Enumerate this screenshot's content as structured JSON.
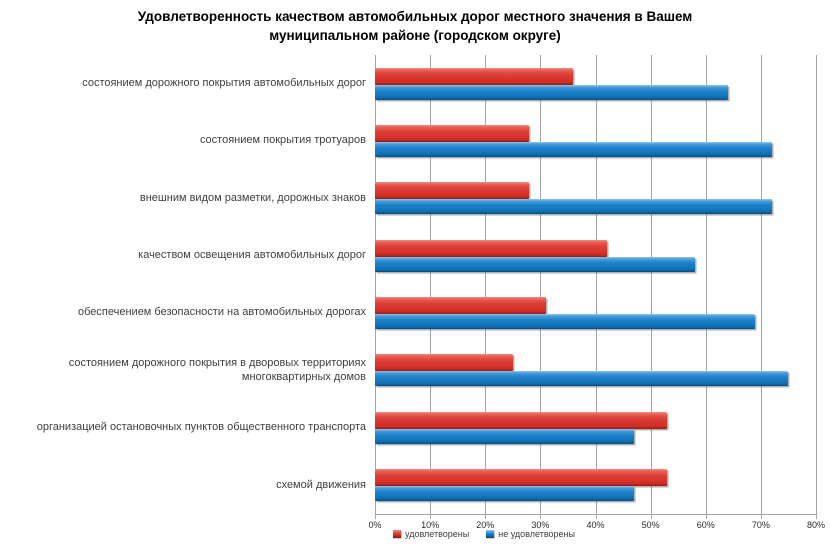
{
  "title": "Удовлетворенность качеством автомобильных дорог местного значения в Вашем муниципальном районе (городском округе)",
  "chart_data": {
    "type": "bar",
    "orientation": "horizontal",
    "title": "Удовлетворенность качеством автомобильных дорог местного значения в Вашем муниципальном районе (городском округе)",
    "categories": [
      "состоянием дорожного покрытия автомобильных дорог",
      "состоянием покрытия тротуаров",
      "внешним видом разметки, дорожных знаков",
      "качеством освещения автомобильных дорог",
      "обеспечением безопасности на автомобильных дорогах",
      "состоянием дорожного покрытия в дворовых территориях многоквартирных домов",
      "организацией остановочных пунктов общественного транспорта",
      "схемой движения"
    ],
    "series": [
      {
        "name": "удовлетворены",
        "color": "#d5322a",
        "values": [
          36,
          28,
          28,
          42,
          31,
          25,
          53,
          53
        ]
      },
      {
        "name": "не удовлетворены",
        "color": "#1376bb",
        "values": [
          64,
          72,
          72,
          58,
          69,
          75,
          47,
          47
        ]
      }
    ],
    "xlim": [
      0,
      80
    ],
    "x_ticks": [
      "0%",
      "10%",
      "20%",
      "30%",
      "40%",
      "50%",
      "60%",
      "70%",
      "80%"
    ],
    "grid": true,
    "gridline_color": "#a3a3a3",
    "legend_position": "bottom"
  }
}
